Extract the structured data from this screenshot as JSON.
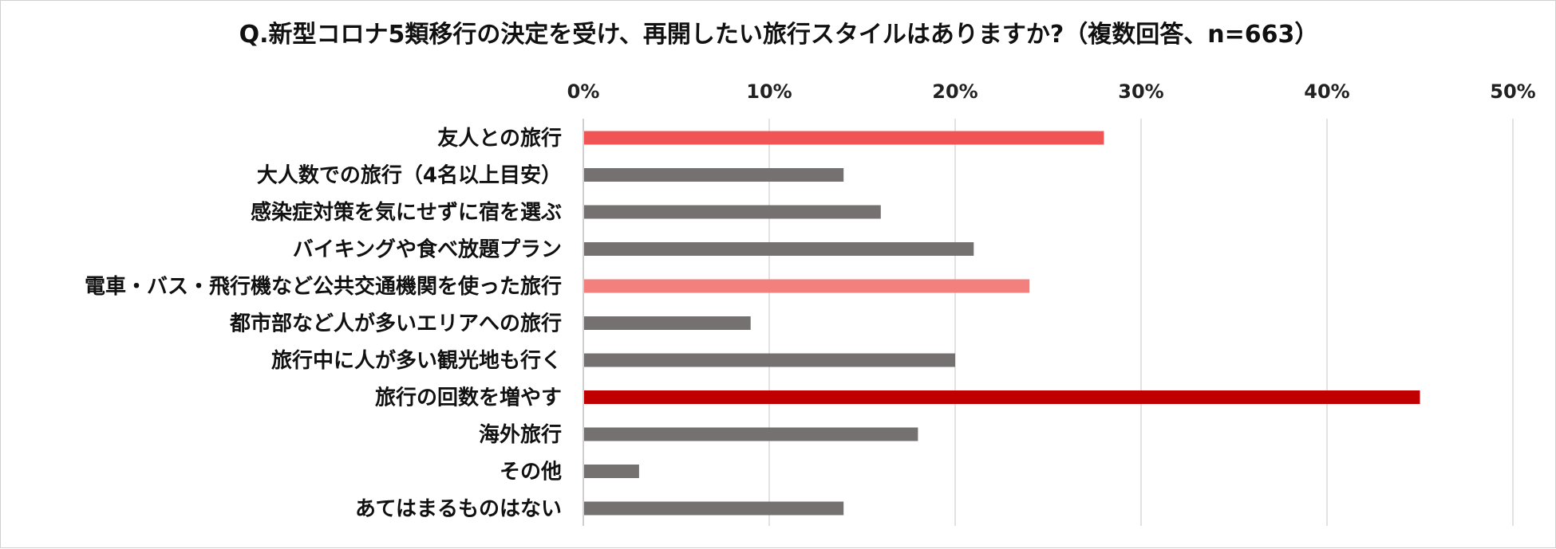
{
  "chart_data": {
    "type": "bar",
    "orientation": "horizontal",
    "title": "Q.新型コロナ5類移行の決定を受け、再開したい旅行スタイルはありますか?（複数回答、n=663）",
    "xlim": [
      0,
      50
    ],
    "xticks": [
      0,
      10,
      20,
      30,
      40,
      50
    ],
    "tick_suffix": "%",
    "grid": true,
    "categories": [
      "友人との旅行",
      "大人数での旅行（4名以上目安）",
      "感染症対策を気にせずに宿を選ぶ",
      "バイキングや食べ放題プラン",
      "電車・バス・飛行機など公共交通機関を使った旅行",
      "都市部など人が多いエリアへの旅行",
      "旅行中に人が多い観光地も行く",
      "旅行の回数を増やす",
      "海外旅行",
      "その他",
      "あてはまるものはない"
    ],
    "values": [
      28,
      14,
      16,
      21,
      24,
      9,
      20,
      45,
      18,
      3,
      14
    ],
    "colors": [
      "#f05454",
      "#767171",
      "#767171",
      "#767171",
      "#f4807e",
      "#767171",
      "#767171",
      "#c00000",
      "#767171",
      "#767171",
      "#767171"
    ]
  }
}
